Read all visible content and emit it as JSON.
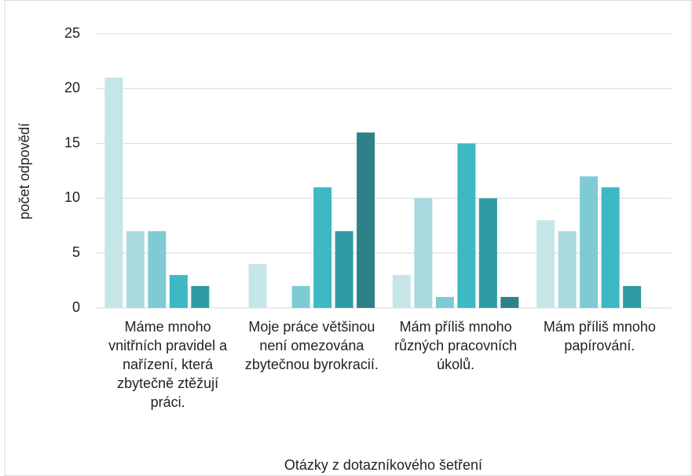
{
  "chart_data": {
    "type": "bar",
    "categories": [
      "Máme mnoho vnitřních pravidel a nařízení, která zbytečně ztěžují práci.",
      "Moje práce většinou není omezována zbytečnou byrokracií.",
      "Mám příliš mnoho různých pracovních úkolů.",
      "Mám příliš mnoho papírování."
    ],
    "series": [
      {
        "color": "#c6e5e9",
        "values": [
          21,
          4,
          3,
          8
        ]
      },
      {
        "color": "#a9d9df",
        "values": [
          7,
          0,
          10,
          7
        ]
      },
      {
        "color": "#7fcbd3",
        "values": [
          7,
          2,
          1,
          12
        ]
      },
      {
        "color": "#3db8c4",
        "values": [
          3,
          11,
          15,
          11
        ]
      },
      {
        "color": "#2f9ba4",
        "values": [
          2,
          7,
          10,
          2
        ]
      },
      {
        "color": "#2e8089",
        "values": [
          0,
          16,
          1,
          0
        ]
      }
    ],
    "xlabel": "Otázky z dotazníkového šetření",
    "ylabel": "počet odpovědí",
    "ylim": [
      0,
      25
    ],
    "yticks": [
      0,
      5,
      10,
      15,
      20,
      25
    ],
    "grid": true
  }
}
